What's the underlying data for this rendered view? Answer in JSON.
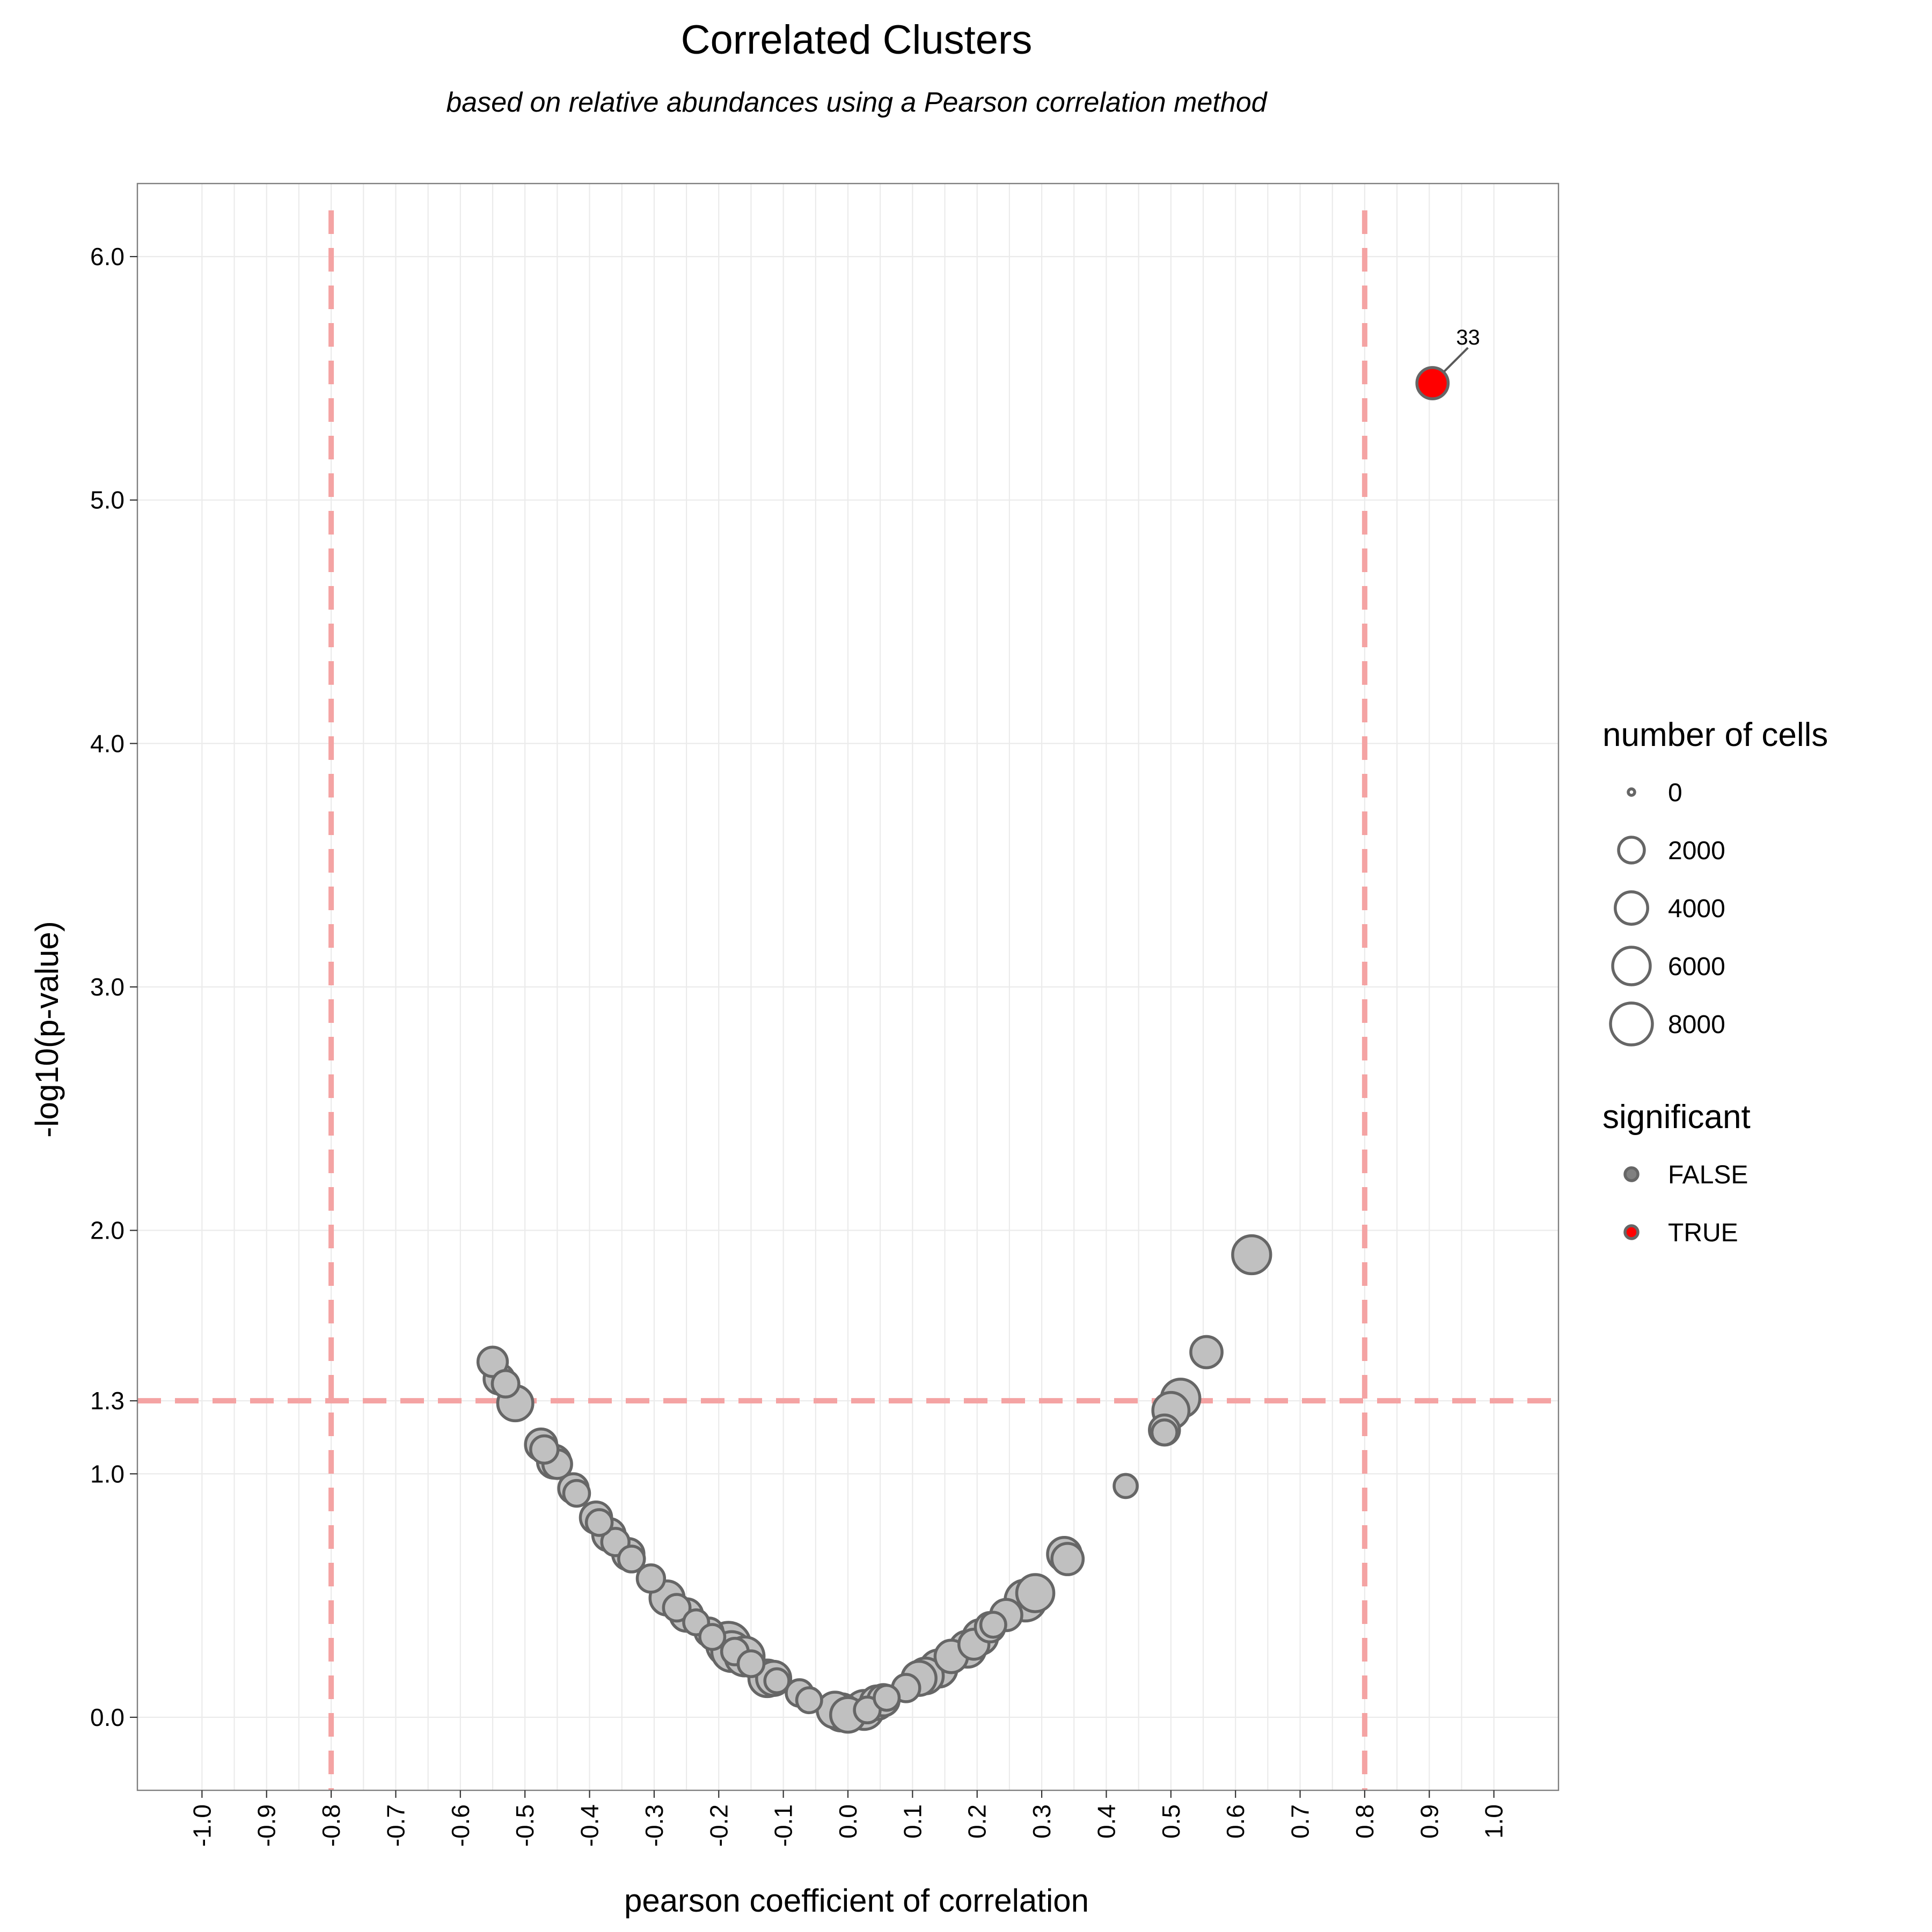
{
  "chart_data": {
    "type": "scatter",
    "title": "Correlated Clusters",
    "subtitle": "based on relative abundances using a Pearson correlation method",
    "xlabel": "pearson coefficient of correlation",
    "ylabel": "-log10(p-value)",
    "xlim": [
      -1.1,
      1.1
    ],
    "ylim": [
      -0.3,
      6.3
    ],
    "x_ticks": [
      -1.0,
      -0.9,
      -0.8,
      -0.7,
      -0.6,
      -0.5,
      -0.4,
      -0.3,
      -0.2,
      -0.1,
      0.0,
      0.1,
      0.2,
      0.3,
      0.4,
      0.5,
      0.6,
      0.7,
      0.8,
      0.9,
      1.0
    ],
    "x_tick_labels": [
      "-1.0",
      "-0.9",
      "-0.8",
      "-0.7",
      "-0.6",
      "-0.5",
      "-0.4",
      "-0.3",
      "-0.2",
      "-0.1",
      "0.0",
      "0.1",
      "0.2",
      "0.3",
      "0.4",
      "0.5",
      "0.6",
      "0.7",
      "0.8",
      "0.9",
      "1.0"
    ],
    "y_ticks": [
      0.0,
      1.0,
      1.3,
      2.0,
      3.0,
      4.0,
      5.0,
      6.0
    ],
    "y_tick_labels": [
      "0.0",
      "1.0",
      "1.3",
      "2.0",
      "3.0",
      "4.0",
      "5.0",
      "6.0"
    ],
    "grid": true,
    "reference_lines": {
      "vertical": [
        -0.8,
        0.8
      ],
      "horizontal": [
        1.3
      ],
      "color": "#f4a3a3",
      "style": "dashed"
    },
    "colors": {
      "false_fill": "#c0c0c0",
      "true_fill": "#ff0000",
      "point_stroke": "#666666"
    },
    "points": [
      {
        "x": -0.55,
        "y": 1.46,
        "cells": 3000,
        "significant": false
      },
      {
        "x": -0.54,
        "y": 1.39,
        "cells": 3200,
        "significant": false
      },
      {
        "x": -0.53,
        "y": 1.37,
        "cells": 2200,
        "significant": false
      },
      {
        "x": -0.515,
        "y": 1.29,
        "cells": 5000,
        "significant": false
      },
      {
        "x": -0.475,
        "y": 1.12,
        "cells": 3600,
        "significant": false
      },
      {
        "x": -0.47,
        "y": 1.1,
        "cells": 2400,
        "significant": false
      },
      {
        "x": -0.455,
        "y": 1.05,
        "cells": 4200,
        "significant": false
      },
      {
        "x": -0.45,
        "y": 1.04,
        "cells": 2800,
        "significant": false
      },
      {
        "x": -0.425,
        "y": 0.94,
        "cells": 3000,
        "significant": false
      },
      {
        "x": -0.42,
        "y": 0.92,
        "cells": 2000,
        "significant": false
      },
      {
        "x": -0.39,
        "y": 0.82,
        "cells": 3600,
        "significant": false
      },
      {
        "x": -0.385,
        "y": 0.8,
        "cells": 2000,
        "significant": false
      },
      {
        "x": -0.37,
        "y": 0.75,
        "cells": 4000,
        "significant": false
      },
      {
        "x": -0.36,
        "y": 0.72,
        "cells": 2400,
        "significant": false
      },
      {
        "x": -0.34,
        "y": 0.67,
        "cells": 3600,
        "significant": false
      },
      {
        "x": -0.335,
        "y": 0.65,
        "cells": 2000,
        "significant": false
      },
      {
        "x": -0.305,
        "y": 0.57,
        "cells": 2400,
        "significant": false
      },
      {
        "x": -0.28,
        "y": 0.49,
        "cells": 4600,
        "significant": false
      },
      {
        "x": -0.265,
        "y": 0.45,
        "cells": 2200,
        "significant": false
      },
      {
        "x": -0.25,
        "y": 0.42,
        "cells": 4000,
        "significant": false
      },
      {
        "x": -0.235,
        "y": 0.39,
        "cells": 1800,
        "significant": false
      },
      {
        "x": -0.215,
        "y": 0.35,
        "cells": 2600,
        "significant": false
      },
      {
        "x": -0.21,
        "y": 0.33,
        "cells": 1800,
        "significant": false
      },
      {
        "x": -0.185,
        "y": 0.3,
        "cells": 9000,
        "significant": false
      },
      {
        "x": -0.18,
        "y": 0.27,
        "cells": 7000,
        "significant": false
      },
      {
        "x": -0.175,
        "y": 0.27,
        "cells": 2200,
        "significant": false
      },
      {
        "x": -0.16,
        "y": 0.25,
        "cells": 6600,
        "significant": false
      },
      {
        "x": -0.15,
        "y": 0.22,
        "cells": 2000,
        "significant": false
      },
      {
        "x": -0.125,
        "y": 0.16,
        "cells": 5600,
        "significant": false
      },
      {
        "x": -0.115,
        "y": 0.16,
        "cells": 4600,
        "significant": false
      },
      {
        "x": -0.11,
        "y": 0.15,
        "cells": 1600,
        "significant": false
      },
      {
        "x": -0.075,
        "y": 0.1,
        "cells": 2200,
        "significant": false
      },
      {
        "x": -0.06,
        "y": 0.07,
        "cells": 1800,
        "significant": false
      },
      {
        "x": -0.02,
        "y": 0.03,
        "cells": 5200,
        "significant": false
      },
      {
        "x": -0.01,
        "y": 0.02,
        "cells": 5800,
        "significant": false
      },
      {
        "x": 0.0,
        "y": 0.01,
        "cells": 4800,
        "significant": false
      },
      {
        "x": 0.025,
        "y": 0.03,
        "cells": 6600,
        "significant": false
      },
      {
        "x": 0.03,
        "y": 0.03,
        "cells": 2000,
        "significant": false
      },
      {
        "x": 0.045,
        "y": 0.06,
        "cells": 4400,
        "significant": false
      },
      {
        "x": 0.055,
        "y": 0.07,
        "cells": 3600,
        "significant": false
      },
      {
        "x": 0.06,
        "y": 0.08,
        "cells": 1800,
        "significant": false
      },
      {
        "x": 0.09,
        "y": 0.12,
        "cells": 2400,
        "significant": false
      },
      {
        "x": 0.11,
        "y": 0.16,
        "cells": 4600,
        "significant": false
      },
      {
        "x": 0.12,
        "y": 0.17,
        "cells": 5200,
        "significant": false
      },
      {
        "x": 0.14,
        "y": 0.2,
        "cells": 5800,
        "significant": false
      },
      {
        "x": 0.16,
        "y": 0.25,
        "cells": 4000,
        "significant": false
      },
      {
        "x": 0.185,
        "y": 0.28,
        "cells": 5400,
        "significant": false
      },
      {
        "x": 0.195,
        "y": 0.3,
        "cells": 3200,
        "significant": false
      },
      {
        "x": 0.205,
        "y": 0.33,
        "cells": 4800,
        "significant": false
      },
      {
        "x": 0.22,
        "y": 0.37,
        "cells": 3000,
        "significant": false
      },
      {
        "x": 0.225,
        "y": 0.38,
        "cells": 1800,
        "significant": false
      },
      {
        "x": 0.245,
        "y": 0.42,
        "cells": 3600,
        "significant": false
      },
      {
        "x": 0.275,
        "y": 0.48,
        "cells": 7600,
        "significant": false
      },
      {
        "x": 0.29,
        "y": 0.51,
        "cells": 5800,
        "significant": false
      },
      {
        "x": 0.335,
        "y": 0.67,
        "cells": 4400,
        "significant": false
      },
      {
        "x": 0.34,
        "y": 0.65,
        "cells": 3600,
        "significant": false
      },
      {
        "x": 0.43,
        "y": 0.95,
        "cells": 1400,
        "significant": false
      },
      {
        "x": 0.49,
        "y": 1.18,
        "cells": 3200,
        "significant": false
      },
      {
        "x": 0.49,
        "y": 1.17,
        "cells": 1800,
        "significant": false
      },
      {
        "x": 0.5,
        "y": 1.26,
        "cells": 5400,
        "significant": false
      },
      {
        "x": 0.515,
        "y": 1.31,
        "cells": 6400,
        "significant": false
      },
      {
        "x": 0.555,
        "y": 1.5,
        "cells": 3600,
        "significant": false
      },
      {
        "x": 0.625,
        "y": 1.9,
        "cells": 6200,
        "significant": false
      },
      {
        "x": 0.905,
        "y": 5.48,
        "cells": 3600,
        "significant": true,
        "label": "33"
      }
    ],
    "legend": {
      "placement": "right",
      "size": {
        "title": "number of cells",
        "breaks": [
          0,
          2000,
          4000,
          6000,
          8000
        ],
        "labels": [
          "0",
          "2000",
          "4000",
          "6000",
          "8000"
        ]
      },
      "color": {
        "title": "significant",
        "entries": [
          {
            "label": "FALSE",
            "fill": "#808080"
          },
          {
            "label": "TRUE",
            "fill": "#ff0000"
          }
        ]
      }
    }
  }
}
